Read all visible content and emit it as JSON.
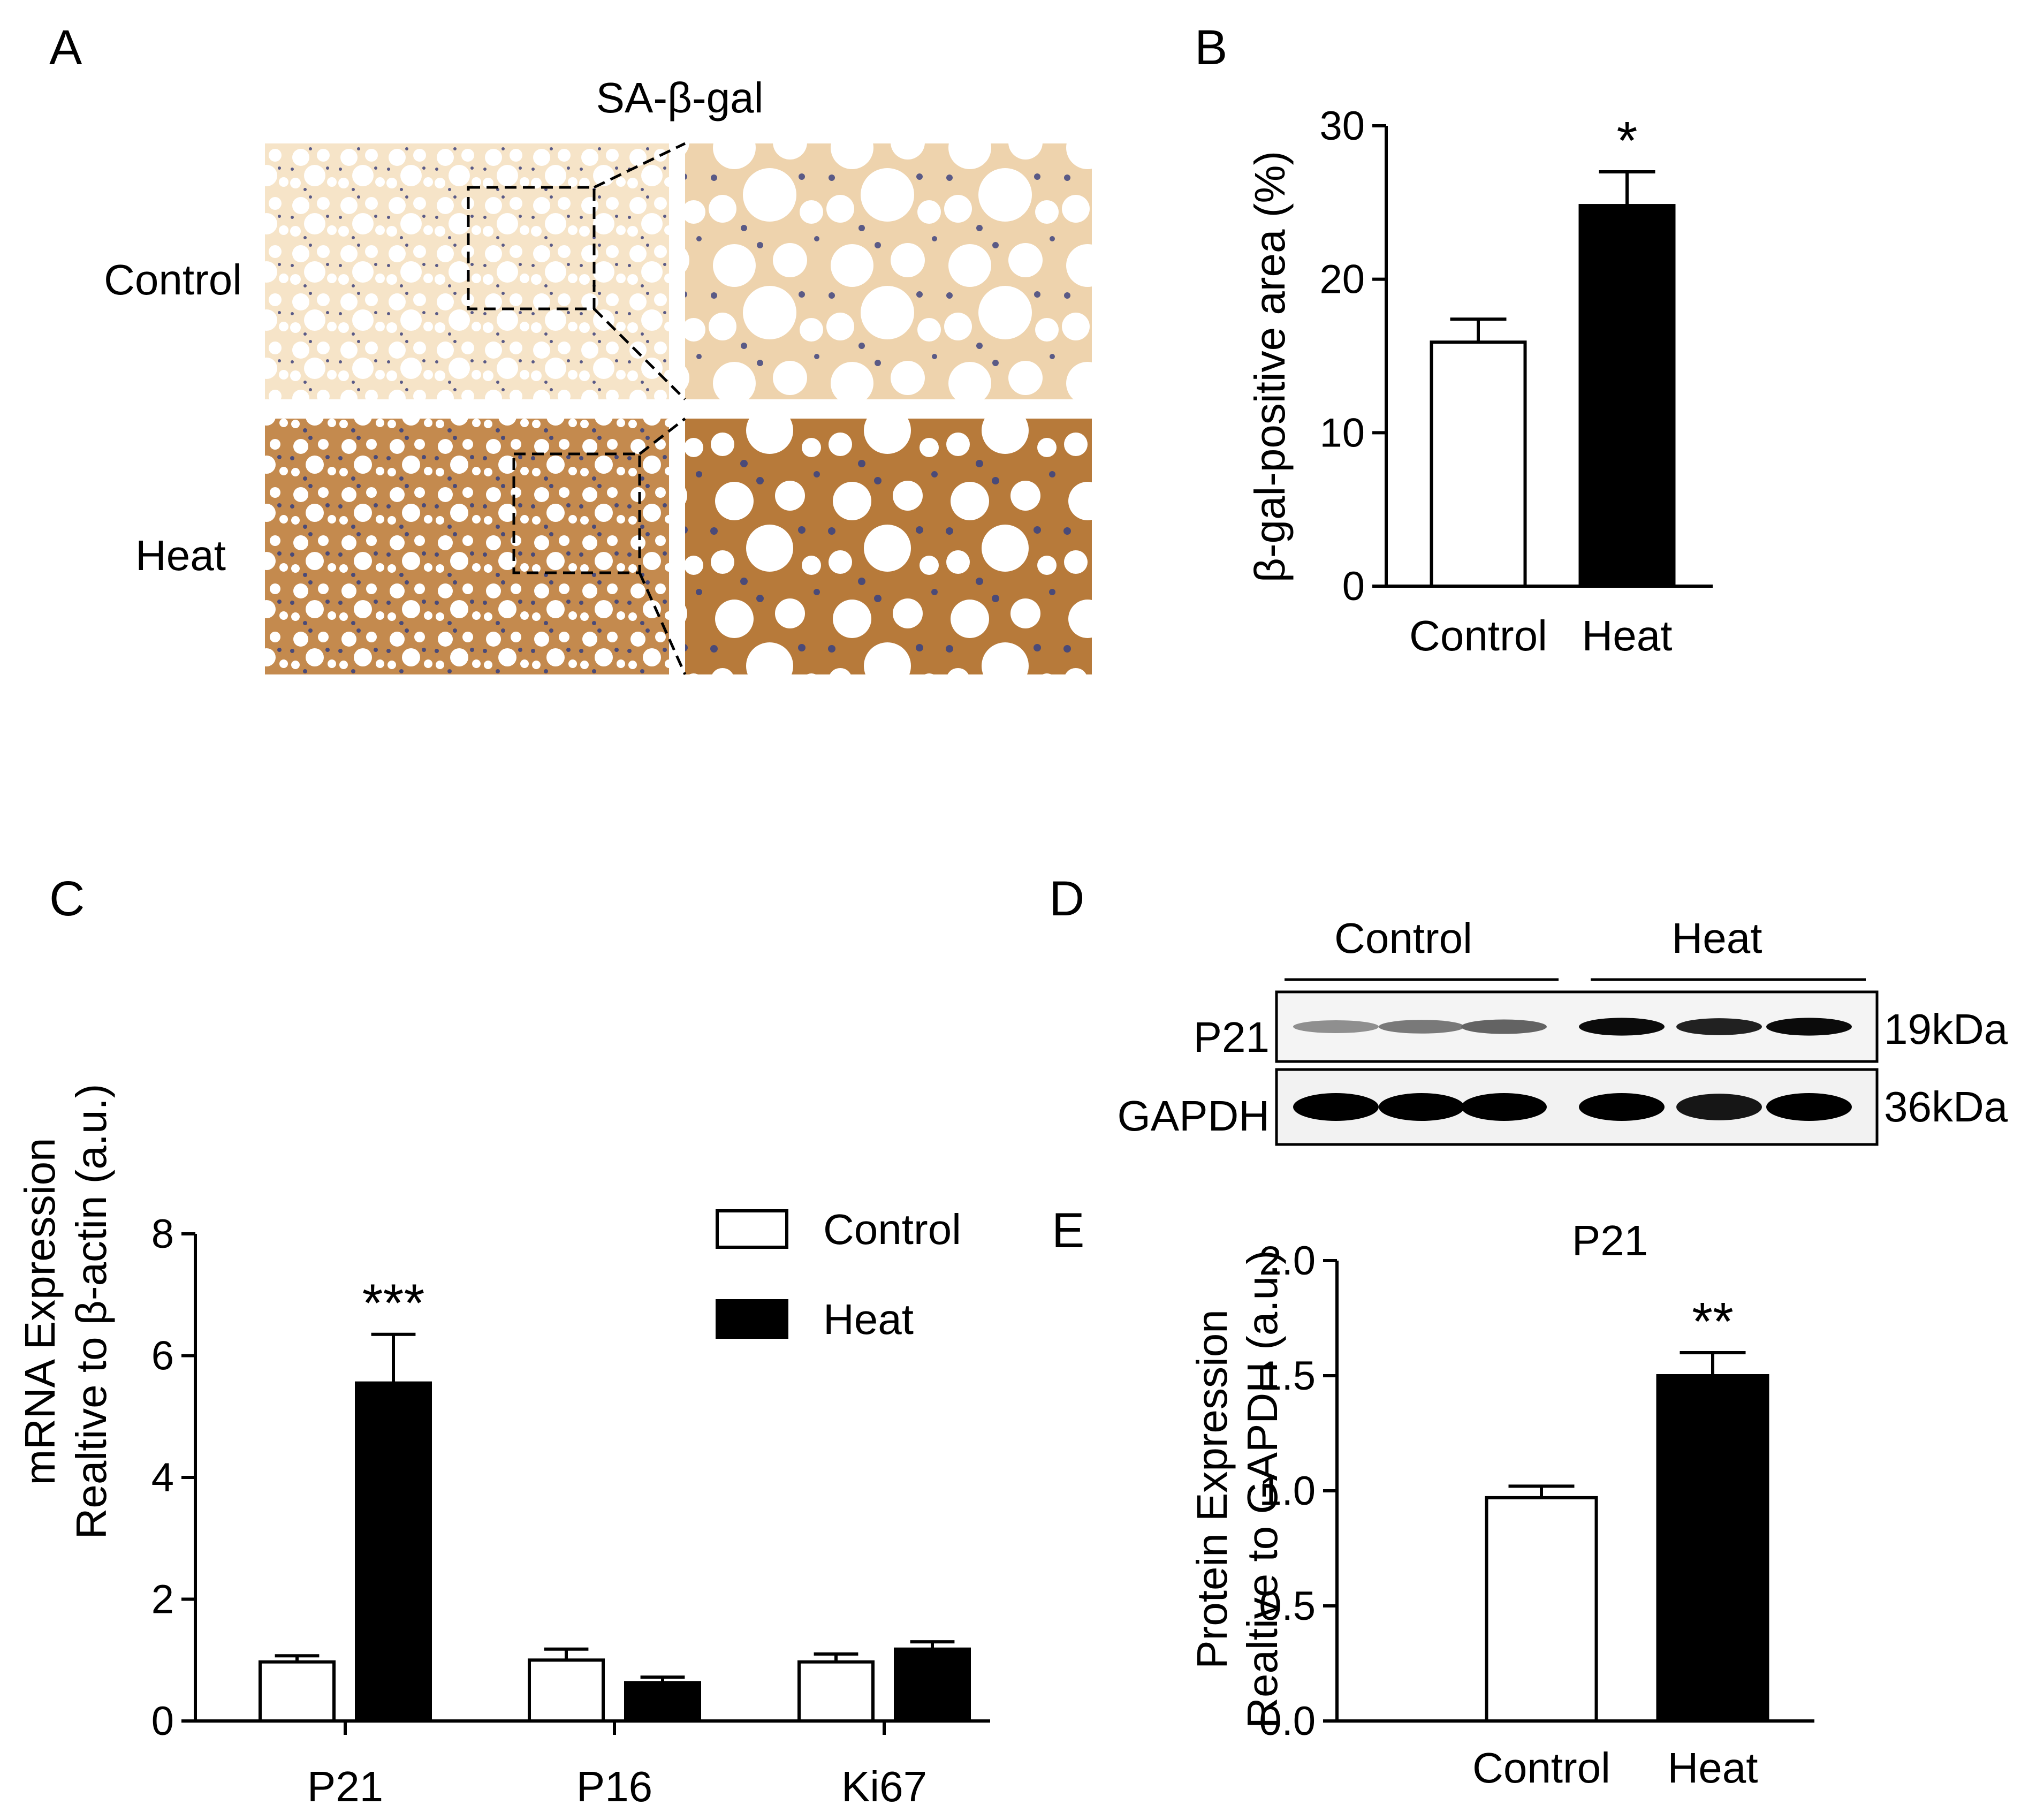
{
  "panels": {
    "A": {
      "letter": "A",
      "title": "SA-β-gal",
      "row_labels": [
        "Control",
        "Heat"
      ]
    },
    "B": {
      "letter": "B"
    },
    "C": {
      "letter": "C"
    },
    "D": {
      "letter": "D",
      "groups": [
        "Control",
        "Heat"
      ],
      "rows": [
        {
          "label": "P21",
          "mw": "19kDa",
          "band_intensity": [
            0.35,
            0.45,
            0.55,
            0.95,
            0.85,
            0.95
          ]
        },
        {
          "label": "GAPDH",
          "mw": "36kDa",
          "band_intensity": [
            1,
            1,
            1,
            1,
            0.9,
            1
          ]
        }
      ]
    },
    "E": {
      "letter": "E"
    }
  },
  "colors": {
    "control_fill": "#ffffff",
    "heat_fill": "#000000",
    "stain_light": "#e9c89a",
    "stain_dark": "#b77a3a",
    "nuclei": "#5a5a86"
  },
  "chart_data": [
    {
      "id": "B",
      "type": "bar",
      "categories": [
        "Control",
        "Heat"
      ],
      "values": [
        15.9,
        24.8
      ],
      "errors": [
        1.5,
        2.2
      ],
      "significance": [
        "",
        "*"
      ],
      "ylabel": "β-gal-positive area (%)",
      "ylim": [
        0,
        30
      ],
      "yticks": [
        "0",
        "10",
        "20",
        "30"
      ]
    },
    {
      "id": "C",
      "type": "bar",
      "categories": [
        "P21",
        "P16",
        "Ki67"
      ],
      "series": [
        {
          "name": "Control",
          "values": [
            0.97,
            1.0,
            0.97
          ],
          "errors": [
            0.1,
            0.18,
            0.13
          ]
        },
        {
          "name": "Heat",
          "values": [
            5.55,
            0.63,
            1.18
          ],
          "errors": [
            0.8,
            0.09,
            0.12
          ]
        }
      ],
      "significance": [
        "***",
        "",
        ""
      ],
      "ylabel_lines": [
        "mRNA Expression",
        "Realtive to β-actin (a.u.)"
      ],
      "ylim": [
        0,
        8
      ],
      "yticks": [
        "0",
        "2",
        "4",
        "6",
        "8"
      ],
      "legend": "top-right"
    },
    {
      "id": "E",
      "type": "bar",
      "title": "P21",
      "categories": [
        "Control",
        "Heat"
      ],
      "values": [
        0.97,
        1.5
      ],
      "errors": [
        0.05,
        0.1
      ],
      "significance": [
        "",
        "**"
      ],
      "ylabel_lines": [
        "Protein Expression",
        "Realtive to GAPDH (a.u.)"
      ],
      "ylim": [
        0,
        2
      ],
      "yticks": [
        "0.0",
        "0.5",
        "1.0",
        "1.5",
        "2.0"
      ]
    }
  ]
}
